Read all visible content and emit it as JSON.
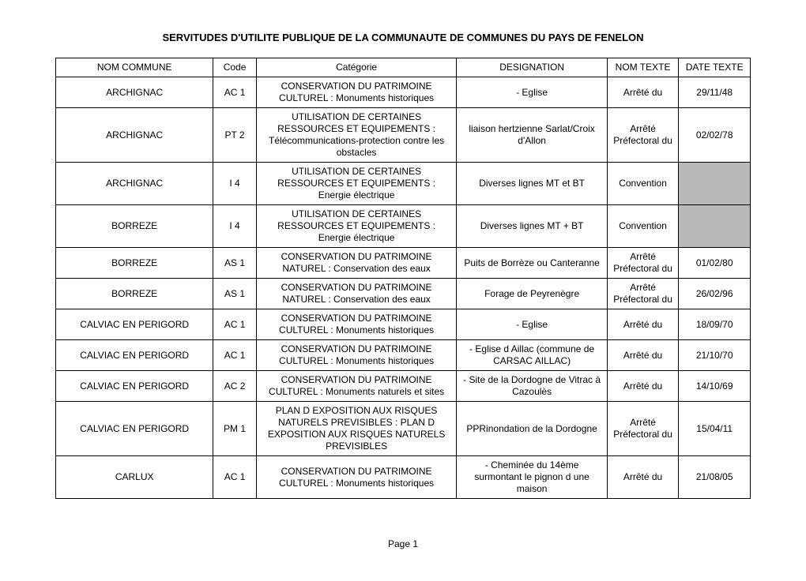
{
  "title": "SERVITUDES D'UTILITE PUBLIQUE DE LA COMMUNAUTE DE COMMUNES DU PAYS DE FENELON",
  "columns": [
    "NOM COMMUNE",
    "Code",
    "Catégorie",
    "DESIGNATION",
    "NOM TEXTE",
    "DATE TEXTE"
  ],
  "rows": [
    {
      "commune": "ARCHIGNAC",
      "code": "AC 1",
      "categorie": "CONSERVATION DU PATRIMOINE CULTUREL : Monuments historiques",
      "designation": "- Eglise",
      "nom_texte": "Arrêté du",
      "date_texte": "29/11/48",
      "date_grey": false
    },
    {
      "commune": "ARCHIGNAC",
      "code": "PT 2",
      "categorie": "UTILISATION DE CERTAINES RESSOURCES ET EQUIPEMENTS : Télécommunications-protection contre les obstacles",
      "designation": "liaison hertzienne Sarlat/Croix d'Allon",
      "nom_texte": "Arrêté Préfectoral du",
      "date_texte": "02/02/78",
      "date_grey": false
    },
    {
      "commune": "ARCHIGNAC",
      "code": "I 4",
      "categorie": "UTILISATION DE CERTAINES RESSOURCES ET EQUIPEMENTS : Energie électrique",
      "designation": "Diverses lignes MT et BT",
      "nom_texte": "Convention",
      "date_texte": "",
      "date_grey": true
    },
    {
      "commune": "BORREZE",
      "code": "I 4",
      "categorie": "UTILISATION DE CERTAINES RESSOURCES ET EQUIPEMENTS : Energie électrique",
      "designation": "Diverses lignes MT + BT",
      "nom_texte": "Convention",
      "date_texte": "",
      "date_grey": true
    },
    {
      "commune": "BORREZE",
      "code": "AS 1",
      "categorie": "CONSERVATION DU PATRIMOINE NATUREL : Conservation des eaux",
      "designation": "Puits de Borrèze ou Canteranne",
      "nom_texte": "Arrêté Préfectoral du",
      "date_texte": "01/02/80",
      "date_grey": false
    },
    {
      "commune": "BORREZE",
      "code": "AS 1",
      "categorie": "CONSERVATION DU PATRIMOINE NATUREL : Conservation des eaux",
      "designation": "Forage de Peyrenègre",
      "nom_texte": "Arrêté Préfectoral du",
      "date_texte": "26/02/96",
      "date_grey": false
    },
    {
      "commune": "CALVIAC EN PERIGORD",
      "code": "AC 1",
      "categorie": "CONSERVATION DU PATRIMOINE CULTUREL : Monuments historiques",
      "designation": "- Eglise",
      "nom_texte": "Arrêté du",
      "date_texte": "18/09/70",
      "date_grey": false
    },
    {
      "commune": "CALVIAC EN PERIGORD",
      "code": "AC 1",
      "categorie": "CONSERVATION DU PATRIMOINE CULTUREL : Monuments historiques",
      "designation": "- Eglise d Aillac (commune de CARSAC AILLAC)",
      "nom_texte": "Arrêté du",
      "date_texte": "21/10/70",
      "date_grey": false
    },
    {
      "commune": "CALVIAC EN PERIGORD",
      "code": "AC 2",
      "categorie": "CONSERVATION DU PATRIMOINE CULTUREL : Monuments naturels et sites",
      "designation": "- Site de la Dordogne de Vitrac à Cazoulès",
      "nom_texte": "Arrêté du",
      "date_texte": "14/10/69",
      "date_grey": false
    },
    {
      "commune": "CALVIAC EN PERIGORD",
      "code": "PM 1",
      "categorie": "PLAN D EXPOSITION AUX RISQUES NATURELS PREVISIBLES : PLAN D EXPOSITION AUX RISQUES NATURELS PREVISIBLES",
      "designation": "PPRinondation de la Dordogne",
      "nom_texte": "Arrêté Préfectoral du",
      "date_texte": "15/04/11",
      "date_grey": false
    },
    {
      "commune": "CARLUX",
      "code": "AC 1",
      "categorie": "CONSERVATION DU PATRIMOINE CULTUREL : Monuments historiques",
      "designation": "- Cheminée du 14ème surmontant le pignon d une maison",
      "nom_texte": "Arrêté du",
      "date_texte": "21/08/05",
      "date_grey": false
    }
  ],
  "footer": "Page 1"
}
